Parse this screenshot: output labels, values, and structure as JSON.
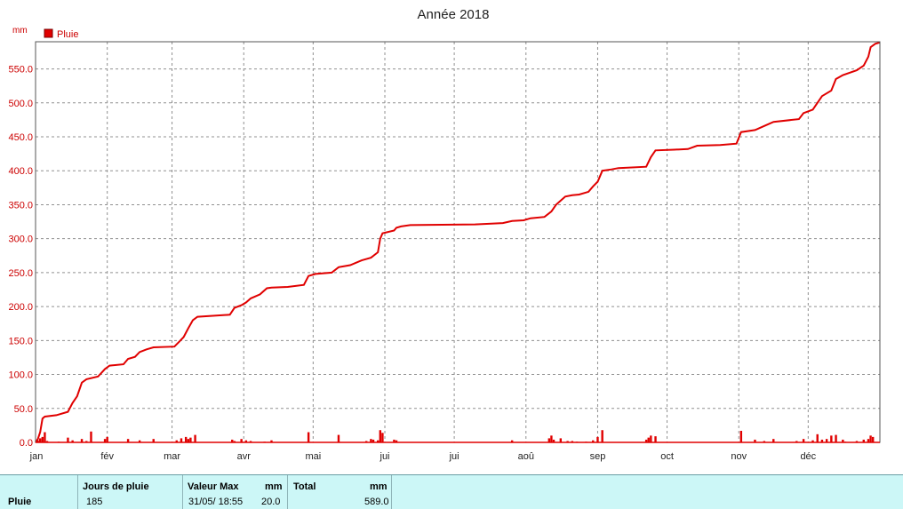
{
  "colors": {
    "series": "#e00000",
    "label": "#cc0000",
    "table_bg": "#ccf7f7"
  },
  "chart_data": {
    "type": "area",
    "title": "Année 2018",
    "ylabel": "mm",
    "legend": {
      "entry": "Pluie",
      "placement": "top-left"
    },
    "ylim": [
      0,
      590
    ],
    "yticks": [
      "0.0",
      "50.0",
      "100.0",
      "150.0",
      "200.0",
      "250.0",
      "300.0",
      "350.0",
      "400.0",
      "450.0",
      "500.0",
      "550.0"
    ],
    "ytick_values": [
      0,
      50,
      100,
      150,
      200,
      250,
      300,
      350,
      400,
      450,
      500,
      550
    ],
    "xlim": [
      0,
      365
    ],
    "months": [
      "jan",
      "fév",
      "mar",
      "avr",
      "mai",
      "jui",
      "jui",
      "aoû",
      "sep",
      "oct",
      "nov",
      "déc"
    ],
    "month_starts": [
      0,
      31,
      59,
      90,
      120,
      151,
      181,
      212,
      243,
      273,
      304,
      334
    ],
    "grid": true,
    "series": [
      {
        "name": "Pluie",
        "kind": "cumulative",
        "points": [
          [
            0,
            0
          ],
          [
            1,
            5
          ],
          [
            2,
            15
          ],
          [
            3,
            35
          ],
          [
            4,
            38
          ],
          [
            9,
            40
          ],
          [
            14,
            45
          ],
          [
            16,
            58
          ],
          [
            18,
            68
          ],
          [
            20,
            88
          ],
          [
            22,
            93
          ],
          [
            27,
            97
          ],
          [
            30,
            108
          ],
          [
            32,
            113
          ],
          [
            38,
            115
          ],
          [
            40,
            123
          ],
          [
            43,
            126
          ],
          [
            45,
            133
          ],
          [
            48,
            137
          ],
          [
            51,
            140
          ],
          [
            60,
            141
          ],
          [
            62,
            148
          ],
          [
            64,
            155
          ],
          [
            66,
            168
          ],
          [
            68,
            180
          ],
          [
            70,
            185
          ],
          [
            84,
            188
          ],
          [
            86,
            198
          ],
          [
            89,
            202
          ],
          [
            91,
            206
          ],
          [
            93,
            212
          ],
          [
            97,
            218
          ],
          [
            100,
            227
          ],
          [
            102,
            228
          ],
          [
            109,
            229
          ],
          [
            116,
            232
          ],
          [
            118,
            245
          ],
          [
            121,
            248
          ],
          [
            128,
            250
          ],
          [
            131,
            258
          ],
          [
            136,
            261
          ],
          [
            141,
            268
          ],
          [
            145,
            272
          ],
          [
            148,
            280
          ],
          [
            149,
            300
          ],
          [
            150,
            308
          ],
          [
            155,
            312
          ],
          [
            156,
            316
          ],
          [
            158,
            318
          ],
          [
            162,
            320
          ],
          [
            190,
            321
          ],
          [
            202,
            323
          ],
          [
            206,
            326
          ],
          [
            211,
            327
          ],
          [
            214,
            330
          ],
          [
            220,
            332
          ],
          [
            223,
            340
          ],
          [
            225,
            350
          ],
          [
            227,
            356
          ],
          [
            229,
            362
          ],
          [
            232,
            364
          ],
          [
            235,
            365
          ],
          [
            239,
            369
          ],
          [
            241,
            377
          ],
          [
            243,
            384
          ],
          [
            245,
            400
          ],
          [
            249,
            402
          ],
          [
            252,
            404
          ],
          [
            264,
            406
          ],
          [
            266,
            420
          ],
          [
            268,
            430
          ],
          [
            276,
            431
          ],
          [
            282,
            432
          ],
          [
            286,
            437
          ],
          [
            296,
            438
          ],
          [
            303,
            440
          ],
          [
            305,
            457
          ],
          [
            311,
            460
          ],
          [
            315,
            466
          ],
          [
            319,
            472
          ],
          [
            330,
            476
          ],
          [
            332,
            485
          ],
          [
            336,
            490
          ],
          [
            338,
            500
          ],
          [
            340,
            510
          ],
          [
            344,
            518
          ],
          [
            346,
            535
          ],
          [
            349,
            541
          ],
          [
            355,
            548
          ],
          [
            358,
            555
          ],
          [
            360,
            568
          ],
          [
            361,
            582
          ],
          [
            363,
            587
          ],
          [
            365,
            589
          ]
        ]
      },
      {
        "name": "Pluie",
        "kind": "daily",
        "days": [
          1,
          2,
          3,
          4,
          5,
          10,
          14,
          16,
          20,
          22,
          24,
          30,
          31,
          40,
          45,
          51,
          61,
          63,
          65,
          66,
          67,
          69,
          85,
          86,
          89,
          91,
          93,
          99,
          102,
          118,
          131,
          143,
          145,
          146,
          148,
          149,
          150,
          155,
          156,
          206,
          222,
          223,
          224,
          227,
          230,
          232,
          234,
          238,
          241,
          243,
          245,
          264,
          265,
          266,
          268,
          305,
          311,
          315,
          319,
          329,
          332,
          336,
          338,
          340,
          342,
          344,
          346,
          349,
          350,
          355,
          358,
          360,
          361,
          362
        ],
        "values": [
          3,
          6,
          8,
          15,
          2,
          1,
          7,
          3,
          5,
          2,
          16,
          5,
          8,
          5,
          3,
          5,
          3,
          6,
          8,
          5,
          7,
          11,
          4,
          2,
          5,
          3,
          2,
          1,
          3,
          15,
          11,
          2,
          5,
          4,
          3,
          18,
          14,
          4,
          3,
          3,
          6,
          10,
          4,
          6,
          2,
          2,
          1,
          1,
          3,
          8,
          18,
          4,
          7,
          10,
          9,
          17,
          4,
          2,
          5,
          2,
          5,
          3,
          12,
          4,
          5,
          10,
          11,
          4,
          1,
          2,
          4,
          5,
          10,
          8
        ]
      }
    ]
  },
  "stats_table": {
    "row_label": "Pluie",
    "headers": {
      "jours": "Jours de pluie",
      "valmax": "Valeur Max",
      "valmax_unit": "mm",
      "total": "Total",
      "total_unit": "mm"
    },
    "values": {
      "jours": "185",
      "valmax_date": "31/05/  18:55",
      "valmax": "20.0",
      "total": "589.0"
    }
  }
}
